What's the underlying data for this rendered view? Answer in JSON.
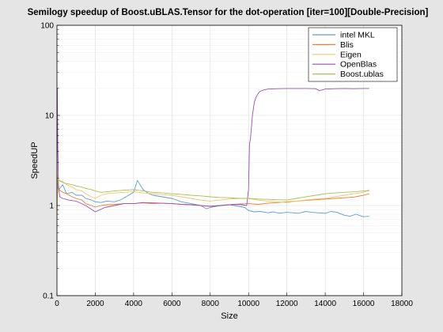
{
  "chart_data": {
    "type": "line",
    "title": "Semilogy speedup of Boost.uBLAS.Tensor for the dot-operation [iter=100][Double-Precision]",
    "xlabel": "Size",
    "ylabel": "SpeedUP",
    "xlim": [
      0,
      18000
    ],
    "ylim": [
      0.1,
      100
    ],
    "y_scale": "log",
    "grid": true,
    "legend_position": "top-right",
    "x_ticks": [
      0,
      2000,
      4000,
      6000,
      8000,
      10000,
      12000,
      14000,
      16000,
      18000
    ],
    "x_tick_labels": [
      "0",
      "2000",
      "4000",
      "6000",
      "8000",
      "10000",
      "12000",
      "14000",
      "16000",
      "18000"
    ],
    "y_ticks": [
      0.1,
      1,
      10,
      100
    ],
    "y_tick_labels": [
      "0.1",
      "1",
      "10",
      "100"
    ],
    "series": [
      {
        "name": "intel MKL",
        "color": "#5b9bd5",
        "x": [
          0,
          50,
          100,
          300,
          500,
          800,
          1000,
          1300,
          1500,
          1800,
          2000,
          2300,
          2600,
          3000,
          3300,
          3600,
          4000,
          4200,
          4500,
          4800,
          5000,
          5500,
          6000,
          6500,
          7000,
          7500,
          7800,
          8000,
          8300,
          8600,
          9000,
          9500,
          9800,
          10000,
          10300,
          10600,
          11000,
          11300,
          11600,
          12000,
          12300,
          12600,
          13000,
          13300,
          13600,
          14000,
          14300,
          14600,
          15000,
          15300,
          15600,
          16000,
          16300
        ],
        "y": [
          1.0,
          1.8,
          1.5,
          1.7,
          1.35,
          1.4,
          1.3,
          1.3,
          1.2,
          1.15,
          1.1,
          1.08,
          1.12,
          1.1,
          1.15,
          1.25,
          1.4,
          1.9,
          1.5,
          1.35,
          1.3,
          1.25,
          1.2,
          1.1,
          1.05,
          1.0,
          0.92,
          0.95,
          0.98,
          1.0,
          1.02,
          0.98,
          0.95,
          0.88,
          0.85,
          0.86,
          0.83,
          0.85,
          0.82,
          0.84,
          0.83,
          0.82,
          0.86,
          0.84,
          0.83,
          0.82,
          0.86,
          0.84,
          0.78,
          0.76,
          0.8,
          0.75,
          0.76
        ]
      },
      {
        "name": "Blis",
        "color": "#ed7d31",
        "x": [
          0,
          50,
          100,
          300,
          500,
          800,
          1000,
          1300,
          1500,
          1800,
          2000,
          2300,
          2600,
          3000,
          3500,
          4000,
          4500,
          5000,
          5500,
          6000,
          6500,
          7000,
          7500,
          8000,
          8500,
          9000,
          9500,
          10000,
          10500,
          11000,
          11500,
          12000,
          12500,
          13000,
          13500,
          14000,
          14500,
          15000,
          15500,
          16000,
          16300
        ],
        "y": [
          0.8,
          1.9,
          1.5,
          1.4,
          1.35,
          1.25,
          1.2,
          1.15,
          1.05,
          1.0,
          0.96,
          1.0,
          1.02,
          1.03,
          1.05,
          1.05,
          1.07,
          1.05,
          1.06,
          1.05,
          1.03,
          1.02,
          1.0,
          0.98,
          1.0,
          1.02,
          1.04,
          1.05,
          1.03,
          1.06,
          1.08,
          1.1,
          1.12,
          1.14,
          1.16,
          1.18,
          1.2,
          1.22,
          1.24,
          1.3,
          1.35
        ]
      },
      {
        "name": "Eigen",
        "color": "#f4c26b",
        "x": [
          0,
          50,
          100,
          300,
          500,
          800,
          1000,
          1300,
          1500,
          1800,
          2000,
          2300,
          2600,
          3000,
          3500,
          4000,
          4500,
          5000,
          5500,
          6000,
          6500,
          7000,
          7500,
          8000,
          8500,
          9000,
          9500,
          10000,
          10500,
          11000,
          11500,
          12000,
          12500,
          13000,
          13500,
          14000,
          14500,
          15000,
          15500,
          16000,
          16300
        ],
        "y": [
          0.7,
          2.2,
          1.9,
          1.85,
          1.7,
          1.6,
          1.5,
          1.45,
          1.35,
          1.25,
          1.2,
          1.3,
          1.35,
          1.38,
          1.4,
          1.42,
          1.38,
          1.35,
          1.32,
          1.3,
          1.25,
          1.2,
          1.15,
          1.12,
          1.15,
          1.18,
          1.2,
          1.2,
          1.15,
          1.12,
          1.1,
          1.08,
          1.12,
          1.15,
          1.18,
          1.2,
          1.25,
          1.3,
          1.35,
          1.4,
          1.5
        ]
      },
      {
        "name": "OpenBlas",
        "color": "#9b4fb0",
        "x": [
          0,
          20,
          40,
          80,
          150,
          300,
          600,
          1000,
          1500,
          2000,
          2500,
          3000,
          3500,
          4000,
          4500,
          5000,
          5500,
          6000,
          6500,
          7000,
          7500,
          8000,
          8500,
          9000,
          9500,
          9900,
          10000,
          10050,
          10100,
          10200,
          10300,
          10400,
          10500,
          10600,
          10800,
          11000,
          11500,
          12000,
          12500,
          13000,
          13500,
          13700,
          14000,
          14500,
          15000,
          15500,
          16000,
          16300
        ],
        "y": [
          1.3,
          20,
          5,
          1.6,
          1.25,
          1.2,
          1.15,
          1.12,
          1.0,
          0.85,
          0.95,
          1.0,
          1.05,
          1.05,
          1.08,
          1.07,
          1.06,
          1.05,
          1.03,
          1.02,
          1.0,
          0.98,
          1.0,
          1.02,
          1.03,
          1.0,
          1.5,
          4.8,
          5.5,
          10,
          14,
          16,
          17.5,
          18.5,
          19.2,
          19.6,
          19.8,
          19.9,
          19.9,
          19.9,
          19.8,
          18.8,
          19.6,
          19.8,
          19.9,
          19.8,
          19.9,
          19.9
        ]
      },
      {
        "name": "Boost.ublas",
        "color": "#a5c24e",
        "x": [
          0,
          50,
          100,
          300,
          500,
          800,
          1000,
          1300,
          1500,
          1800,
          2000,
          2300,
          2600,
          3000,
          3500,
          4000,
          4500,
          5000,
          5500,
          6000,
          6500,
          7000,
          7500,
          8000,
          8500,
          9000,
          9500,
          10000,
          10500,
          11000,
          11500,
          12000,
          12500,
          13000,
          13500,
          14000,
          14500,
          15000,
          15500,
          16000,
          16300
        ],
        "y": [
          1.0,
          2.0,
          1.9,
          1.8,
          1.75,
          1.7,
          1.65,
          1.6,
          1.55,
          1.5,
          1.45,
          1.4,
          1.42,
          1.45,
          1.48,
          1.5,
          1.45,
          1.4,
          1.38,
          1.35,
          1.33,
          1.3,
          1.28,
          1.25,
          1.23,
          1.22,
          1.2,
          1.2,
          1.18,
          1.17,
          1.16,
          1.15,
          1.2,
          1.25,
          1.3,
          1.35,
          1.38,
          1.4,
          1.42,
          1.45,
          1.45
        ]
      }
    ]
  }
}
